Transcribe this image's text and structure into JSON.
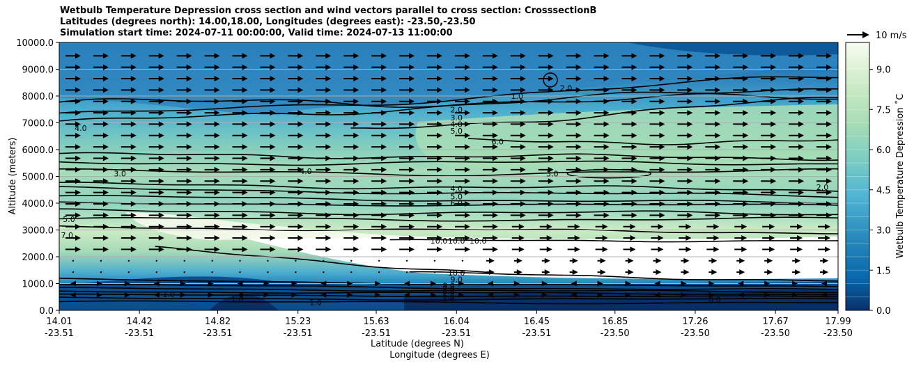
{
  "title": {
    "line1": "Wetbulb Temperature Depression cross section and wind vectors parallel to cross section: CrosssectionB",
    "line2": "Latitudes (degrees north): 14.00,18.00, Longitudes (degrees east): -23.50,-23.50",
    "line3": "Simulation start time: 2024-07-11 00:00:00, Valid time: 2024-07-13 11:00:00"
  },
  "chart_data": {
    "type": "heatmap",
    "ylabel": "Altitude (meters)",
    "xlabel_line1": "Latitude (degrees N)",
    "xlabel_line2": "Longitude (degrees E)",
    "ylim": [
      0,
      10000
    ],
    "yticks": [
      "0.0",
      "1000.0",
      "2000.0",
      "3000.0",
      "4000.0",
      "5000.0",
      "6000.0",
      "7000.0",
      "8000.0",
      "9000.0",
      "10000.0"
    ],
    "xticks_lat": [
      "14.01",
      "14.42",
      "14.82",
      "15.23",
      "15.63",
      "16.04",
      "16.45",
      "16.85",
      "17.26",
      "17.67",
      "17.99"
    ],
    "xticks_lon": [
      "-23.51",
      "-23.51",
      "-23.51",
      "-23.51",
      "-23.51",
      "-23.51",
      "-23.51",
      "-23.50",
      "-23.50",
      "-23.50",
      "-23.50"
    ],
    "colorbar": {
      "label": "Wetbulb Temperature Depression ˚C",
      "range": [
        0,
        10
      ],
      "ticks": [
        "0.0",
        "1.5",
        "3.0",
        "4.5",
        "6.0",
        "7.5",
        "9.0"
      ]
    },
    "quiver_key": {
      "label": "10 m/s"
    },
    "contour_labels": [
      {
        "text": "1.0",
        "x": 16.35,
        "alt": 8000
      },
      {
        "text": "2.0",
        "x": 16.6,
        "alt": 8300
      },
      {
        "text": "2.0",
        "x": 16.04,
        "alt": 7500
      },
      {
        "text": "3.0",
        "x": 16.04,
        "alt": 7200
      },
      {
        "text": "4.0",
        "x": 16.04,
        "alt": 6950
      },
      {
        "text": "5.0",
        "x": 16.04,
        "alt": 6700
      },
      {
        "text": "6.0",
        "x": 16.25,
        "alt": 6300
      },
      {
        "text": "4.0",
        "x": 14.12,
        "alt": 6800
      },
      {
        "text": "3.0",
        "x": 14.32,
        "alt": 5100
      },
      {
        "text": "4.0",
        "x": 15.27,
        "alt": 5200
      },
      {
        "text": "3.0",
        "x": 16.53,
        "alt": 5100
      },
      {
        "text": "2.0",
        "x": 17.91,
        "alt": 4600
      },
      {
        "text": "4.0",
        "x": 16.04,
        "alt": 4550
      },
      {
        "text": "5.0",
        "x": 16.04,
        "alt": 4250
      },
      {
        "text": "6.0",
        "x": 16.04,
        "alt": 4000
      },
      {
        "text": "7.0",
        "x": 14.05,
        "alt": 2800
      },
      {
        "text": "5.0",
        "x": 14.06,
        "alt": 3400
      },
      {
        "text": "10.0",
        "x": 15.95,
        "alt": 2600
      },
      {
        "text": "10.0",
        "x": 16.04,
        "alt": 2600
      },
      {
        "text": "10.0",
        "x": 16.15,
        "alt": 2600
      },
      {
        "text": "10.0",
        "x": 16.04,
        "alt": 1400
      },
      {
        "text": "9.0",
        "x": 16.04,
        "alt": 1150
      },
      {
        "text": "8.0",
        "x": 16.0,
        "alt": 920
      },
      {
        "text": "7.0",
        "x": 16.0,
        "alt": 800
      },
      {
        "text": "6.0",
        "x": 16.0,
        "alt": 700
      },
      {
        "text": "5.0",
        "x": 16.0,
        "alt": 550
      },
      {
        "text": "2.0",
        "x": 16.0,
        "alt": 450
      },
      {
        "text": "1.0",
        "x": 15.32,
        "alt": 300
      },
      {
        "text": "1.0",
        "x": 14.92,
        "alt": 400
      },
      {
        "text": "1.0",
        "x": 14.57,
        "alt": 600
      },
      {
        "text": "0.0",
        "x": 17.36,
        "alt": 400
      }
    ]
  }
}
